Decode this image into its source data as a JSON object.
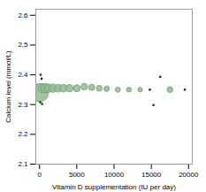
{
  "chart_data": {
    "type": "scatter",
    "xlabel": "Vitamin D supplementation (IU per day)",
    "ylabel": "Calcium level (mmol/L)",
    "xlim": [
      -500,
      20500
    ],
    "ylim": [
      2.1,
      2.62
    ],
    "xticks": [
      0,
      5000,
      10000,
      15000,
      20000
    ],
    "yticks": [
      2.1,
      2.2,
      2.3,
      2.4,
      2.5,
      2.6
    ],
    "series": [
      {
        "type": "bubble",
        "color": "#8fbc8f",
        "x": [
          0,
          400,
          800,
          1200,
          1800,
          2500,
          3200,
          4000,
          5000,
          6000,
          7000,
          8000,
          9000,
          10500,
          12000,
          13500,
          17500
        ],
        "y": [
          2.34,
          2.355,
          2.355,
          2.355,
          2.355,
          2.355,
          2.355,
          2.355,
          2.355,
          2.36,
          2.358,
          2.355,
          2.353,
          2.35,
          2.35,
          2.35,
          2.35
        ],
        "sizes": [
          220,
          55,
          55,
          45,
          45,
          40,
          38,
          35,
          32,
          28,
          25,
          22,
          20,
          18,
          16,
          14,
          22
        ]
      },
      {
        "type": "scatter",
        "color": "#222222",
        "x": [
          150,
          280,
          100,
          350,
          16200,
          14800,
          15300,
          19500
        ],
        "y": [
          2.4,
          2.387,
          2.308,
          2.302,
          2.393,
          2.35,
          2.298,
          2.35
        ]
      }
    ]
  }
}
